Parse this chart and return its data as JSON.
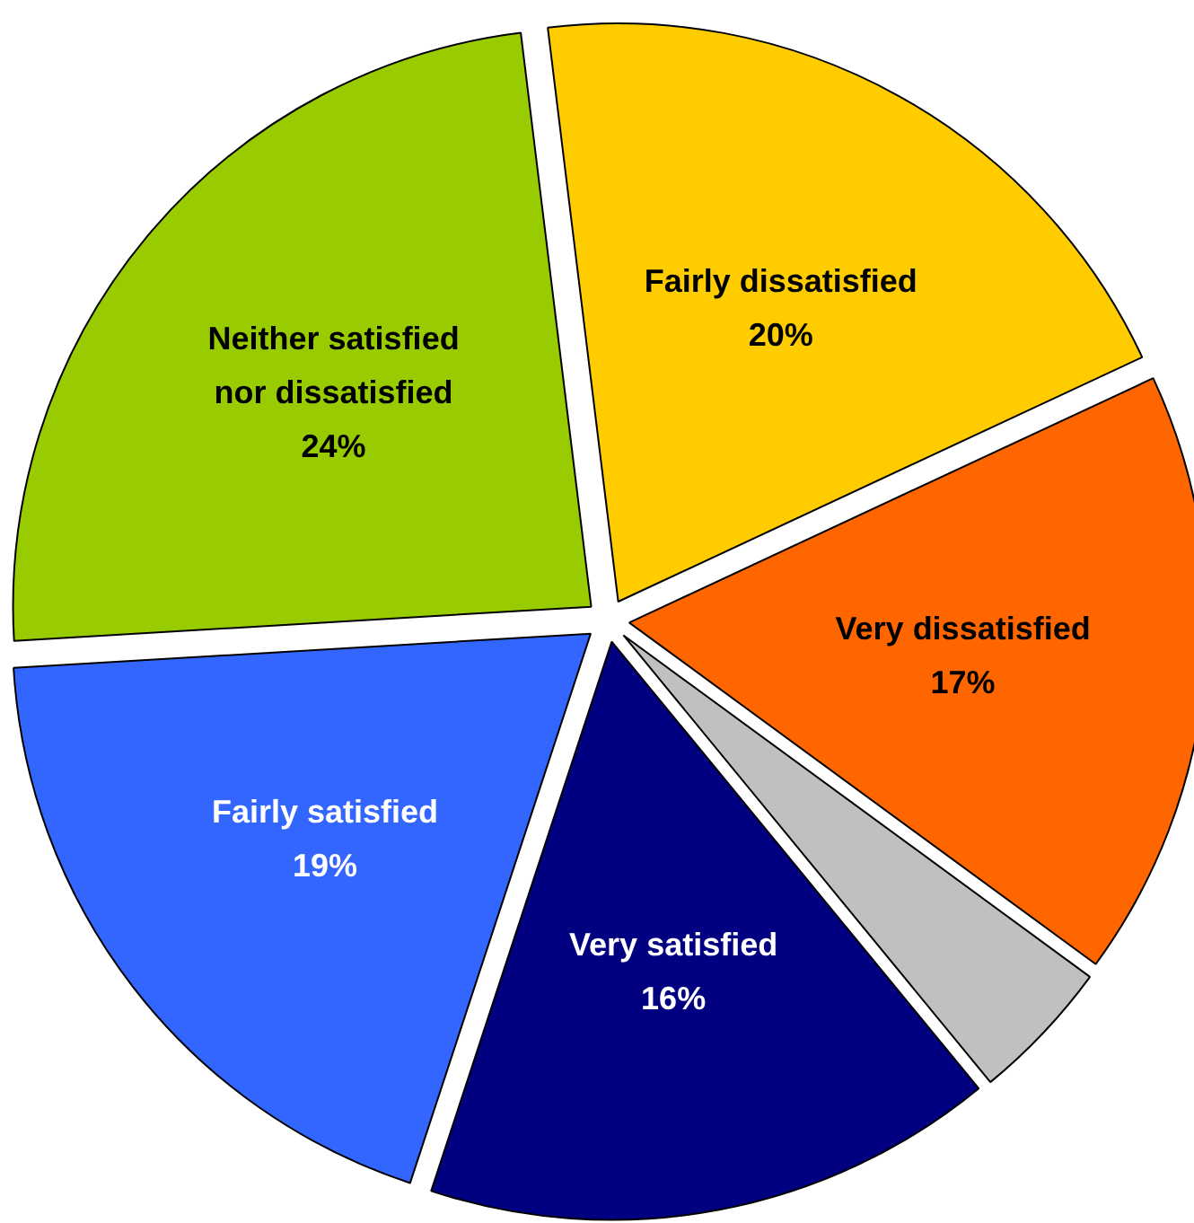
{
  "chart_data": {
    "type": "pie",
    "categories": [
      "Fairly dissatisfied",
      "Very dissatisfied",
      null,
      "Very satisfied",
      "Fairly satisfied",
      "Neither satisfied\nnor dissatisfied"
    ],
    "values": [
      20,
      17,
      4,
      16,
      19,
      24
    ],
    "colors": [
      "#ffcc00",
      "#ff6600",
      "#c0c0c0",
      "#000080",
      "#3366ff",
      "#99cc00"
    ],
    "value_labels": [
      "20%",
      "17%",
      null,
      "16%",
      "19%",
      "24%"
    ]
  }
}
